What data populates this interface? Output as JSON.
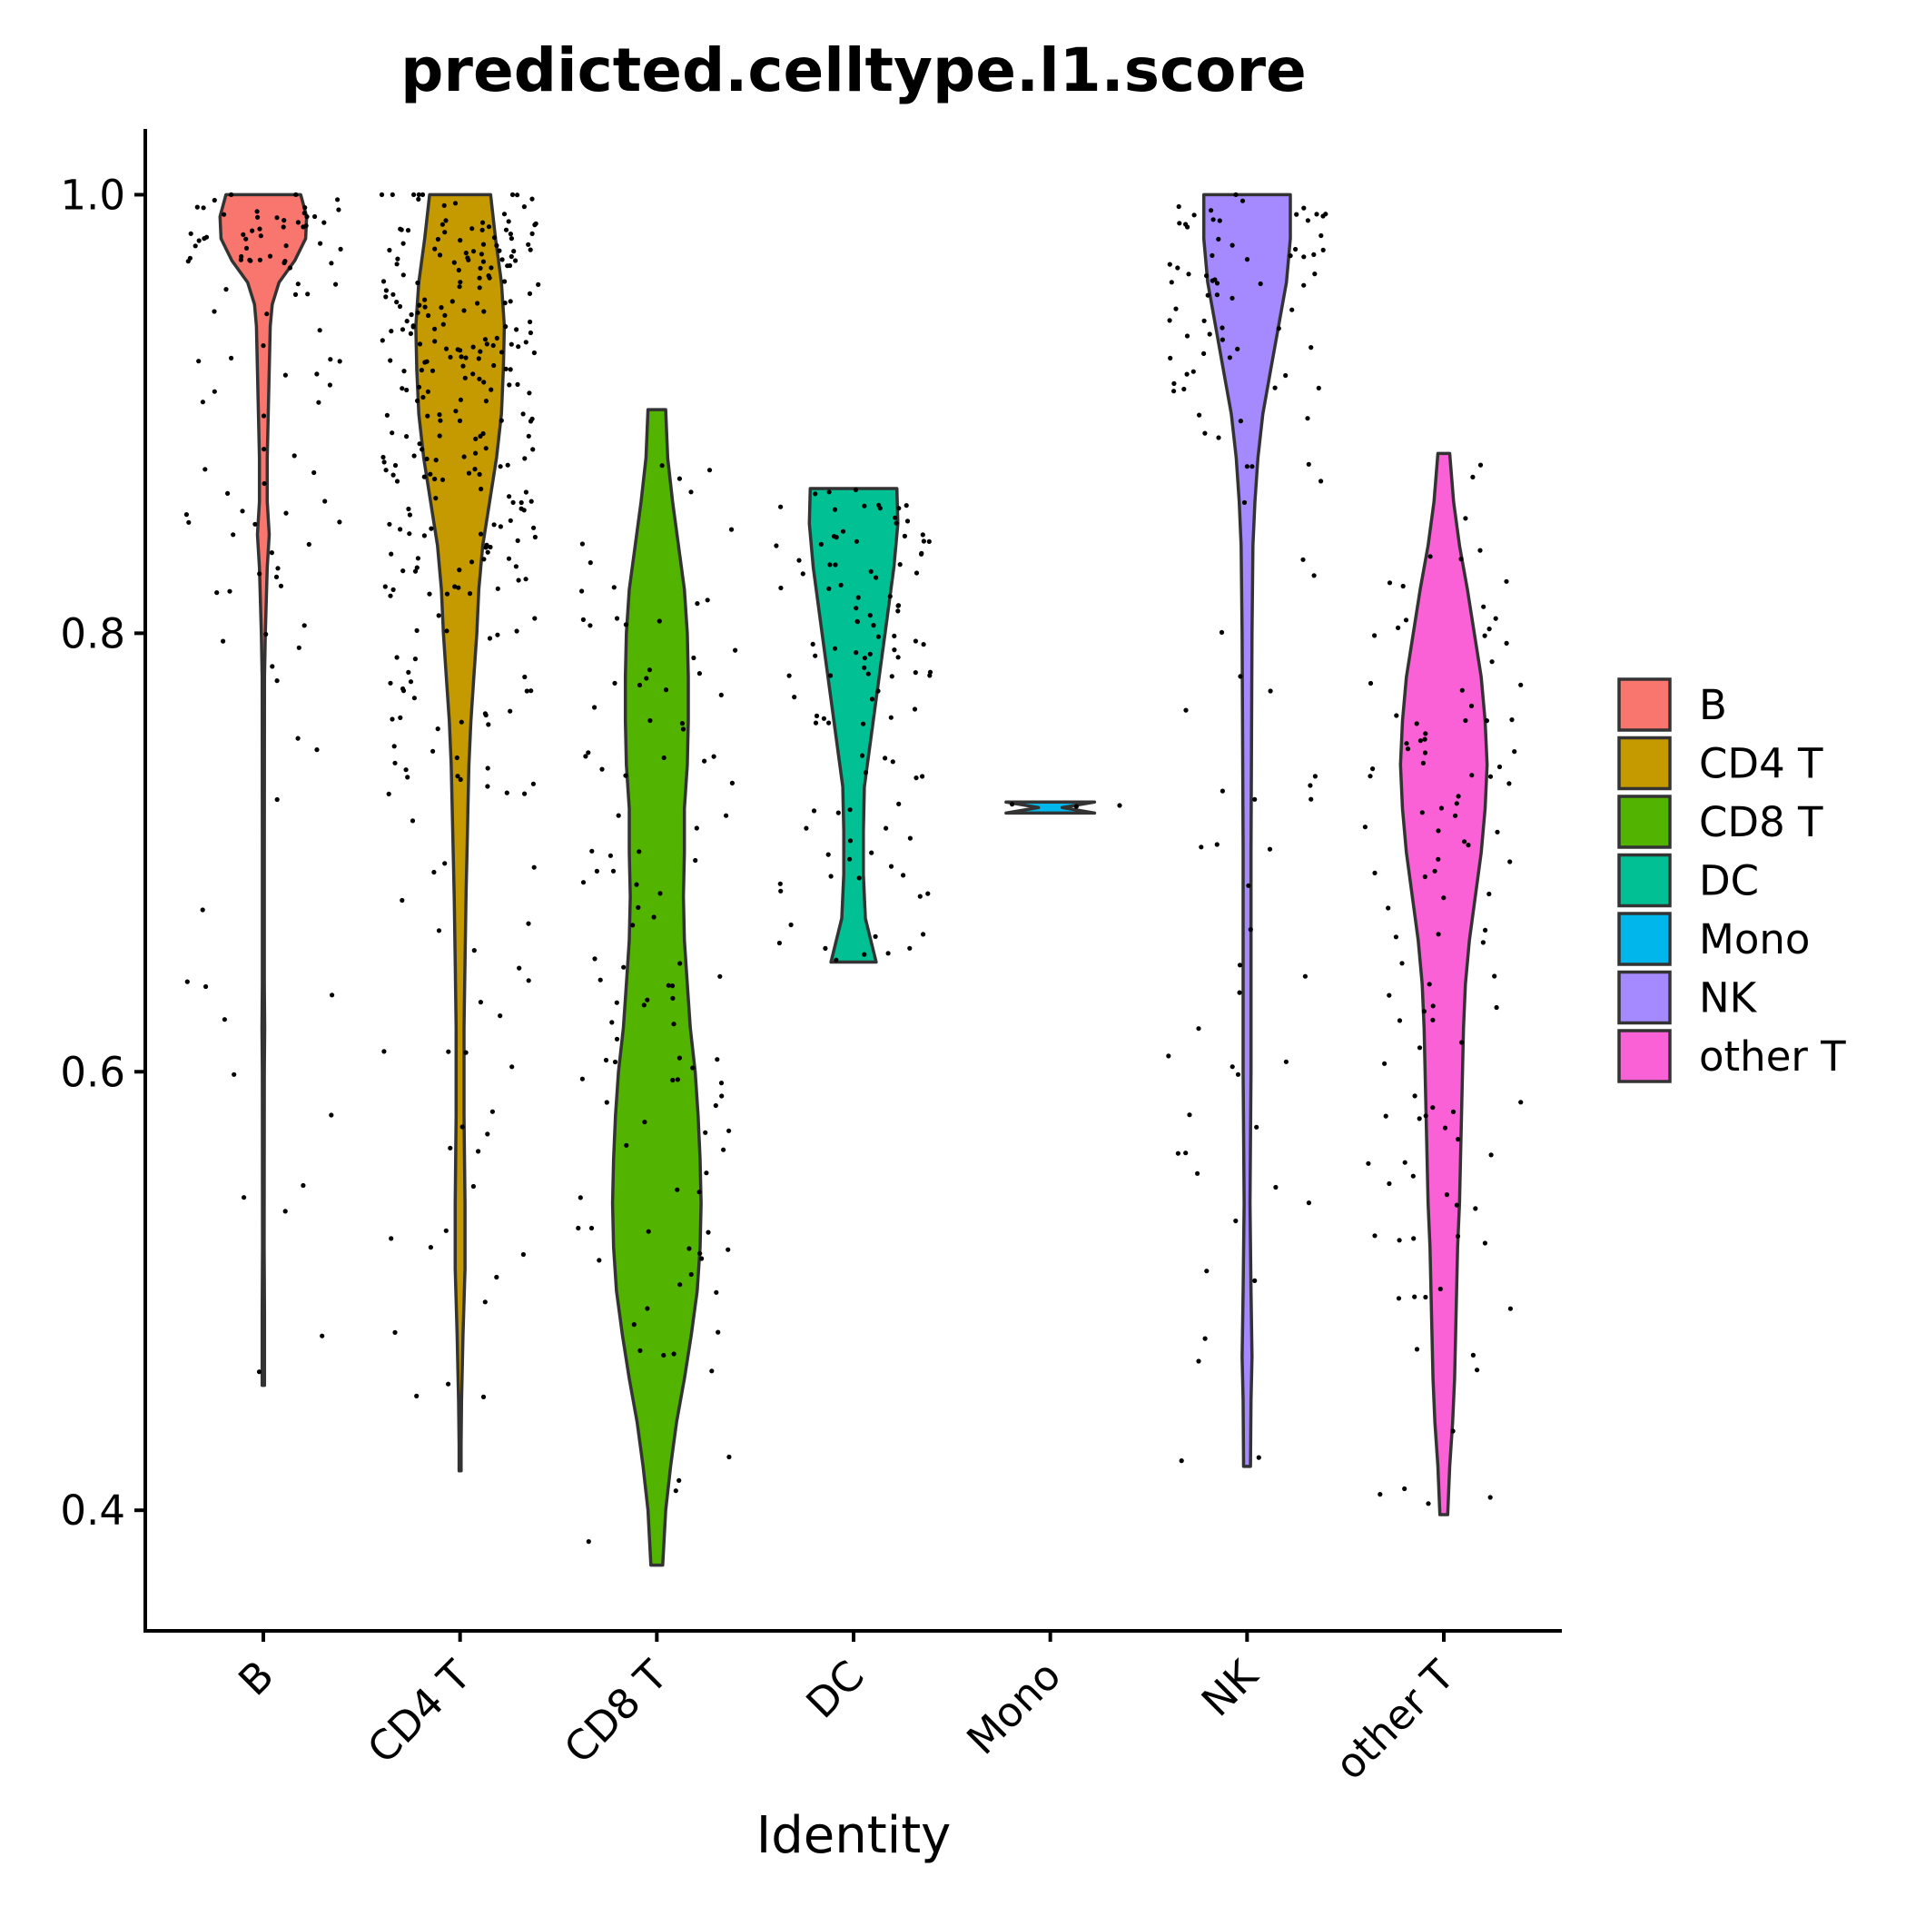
{
  "chart_data": {
    "type": "violin",
    "title": "predicted.celltype.l1.score",
    "xlabel": "Identity",
    "ylabel": "",
    "ylim": [
      0.345,
      1.03
    ],
    "yticks": [
      "0.4",
      "0.6",
      "0.8",
      "1.0"
    ],
    "categories": [
      "B",
      "CD4 T",
      "CD8 T",
      "DC",
      "Mono",
      "NK",
      "other T"
    ],
    "colors": [
      "#F8766D",
      "#C49A00",
      "#53B400",
      "#00C094",
      "#00B6EB",
      "#A58AFF",
      "#FB61D7"
    ],
    "legend": {
      "position": "right",
      "entries": [
        "B",
        "CD4 T",
        "CD8 T",
        "DC",
        "Mono",
        "NK",
        "other T"
      ]
    },
    "series": [
      {
        "name": "B",
        "range": [
          0.457,
          1.0
        ],
        "density": [
          [
            1.0,
            0.38
          ],
          [
            0.99,
            0.44
          ],
          [
            0.98,
            0.43
          ],
          [
            0.97,
            0.32
          ],
          [
            0.96,
            0.16
          ],
          [
            0.95,
            0.09
          ],
          [
            0.94,
            0.07
          ],
          [
            0.92,
            0.06
          ],
          [
            0.9,
            0.05
          ],
          [
            0.88,
            0.04
          ],
          [
            0.86,
            0.04
          ],
          [
            0.845,
            0.06
          ],
          [
            0.83,
            0.04
          ],
          [
            0.8,
            0.02
          ],
          [
            0.78,
            0.012
          ],
          [
            0.7,
            0.01
          ],
          [
            0.64,
            0.01
          ],
          [
            0.62,
            0.014
          ],
          [
            0.6,
            0.01
          ],
          [
            0.52,
            0.008
          ],
          [
            0.49,
            0.012
          ],
          [
            0.457,
            0.012
          ]
        ]
      },
      {
        "name": "CD4 T",
        "range": [
          0.418,
          1.0
        ],
        "density": [
          [
            1.0,
            0.31
          ],
          [
            0.98,
            0.36
          ],
          [
            0.96,
            0.42
          ],
          [
            0.94,
            0.45
          ],
          [
            0.92,
            0.44
          ],
          [
            0.9,
            0.42
          ],
          [
            0.88,
            0.37
          ],
          [
            0.86,
            0.3
          ],
          [
            0.84,
            0.23
          ],
          [
            0.82,
            0.19
          ],
          [
            0.8,
            0.17
          ],
          [
            0.78,
            0.14
          ],
          [
            0.76,
            0.11
          ],
          [
            0.74,
            0.09
          ],
          [
            0.72,
            0.08
          ],
          [
            0.7,
            0.07
          ],
          [
            0.68,
            0.06
          ],
          [
            0.65,
            0.05
          ],
          [
            0.62,
            0.04
          ],
          [
            0.58,
            0.04
          ],
          [
            0.54,
            0.05
          ],
          [
            0.51,
            0.05
          ],
          [
            0.48,
            0.03
          ],
          [
            0.45,
            0.015
          ],
          [
            0.43,
            0.01
          ],
          [
            0.418,
            0.01
          ]
        ]
      },
      {
        "name": "CD8 T",
        "range": [
          0.375,
          0.902
        ],
        "density": [
          [
            0.902,
            0.09
          ],
          [
            0.88,
            0.11
          ],
          [
            0.86,
            0.16
          ],
          [
            0.84,
            0.22
          ],
          [
            0.82,
            0.28
          ],
          [
            0.8,
            0.31
          ],
          [
            0.78,
            0.32
          ],
          [
            0.76,
            0.32
          ],
          [
            0.74,
            0.31
          ],
          [
            0.72,
            0.28
          ],
          [
            0.7,
            0.28
          ],
          [
            0.68,
            0.27
          ],
          [
            0.66,
            0.28
          ],
          [
            0.64,
            0.31
          ],
          [
            0.62,
            0.34
          ],
          [
            0.6,
            0.39
          ],
          [
            0.58,
            0.42
          ],
          [
            0.56,
            0.44
          ],
          [
            0.54,
            0.45
          ],
          [
            0.52,
            0.44
          ],
          [
            0.5,
            0.41
          ],
          [
            0.48,
            0.35
          ],
          [
            0.46,
            0.28
          ],
          [
            0.44,
            0.2
          ],
          [
            0.42,
            0.14
          ],
          [
            0.4,
            0.09
          ],
          [
            0.375,
            0.06
          ]
        ]
      },
      {
        "name": "DC",
        "range": [
          0.65,
          0.866
        ],
        "density": [
          [
            0.866,
            0.44
          ],
          [
            0.85,
            0.45
          ],
          [
            0.83,
            0.41
          ],
          [
            0.8,
            0.32
          ],
          [
            0.77,
            0.23
          ],
          [
            0.75,
            0.17
          ],
          [
            0.73,
            0.11
          ],
          [
            0.71,
            0.1
          ],
          [
            0.69,
            0.1
          ],
          [
            0.67,
            0.12
          ],
          [
            0.65,
            0.23
          ]
        ]
      },
      {
        "name": "Mono",
        "range": [
          0.718,
          0.723
        ],
        "density": [
          [
            0.723,
            0.45
          ],
          [
            0.7205,
            0.12
          ],
          [
            0.718,
            0.45
          ]
        ]
      },
      {
        "name": "NK",
        "range": [
          0.42,
          1.0
        ],
        "density": [
          [
            1.0,
            0.44
          ],
          [
            0.98,
            0.44
          ],
          [
            0.96,
            0.4
          ],
          [
            0.94,
            0.32
          ],
          [
            0.92,
            0.24
          ],
          [
            0.9,
            0.16
          ],
          [
            0.88,
            0.11
          ],
          [
            0.86,
            0.08
          ],
          [
            0.84,
            0.06
          ],
          [
            0.8,
            0.05
          ],
          [
            0.7,
            0.04
          ],
          [
            0.6,
            0.04
          ],
          [
            0.54,
            0.03
          ],
          [
            0.5,
            0.04
          ],
          [
            0.47,
            0.05
          ],
          [
            0.45,
            0.04
          ],
          [
            0.42,
            0.035
          ]
        ]
      },
      {
        "name": "other T",
        "range": [
          0.398,
          0.882
        ],
        "density": [
          [
            0.882,
            0.06
          ],
          [
            0.86,
            0.1
          ],
          [
            0.84,
            0.16
          ],
          [
            0.82,
            0.24
          ],
          [
            0.8,
            0.31
          ],
          [
            0.78,
            0.38
          ],
          [
            0.76,
            0.42
          ],
          [
            0.74,
            0.44
          ],
          [
            0.72,
            0.42
          ],
          [
            0.7,
            0.38
          ],
          [
            0.68,
            0.32
          ],
          [
            0.66,
            0.26
          ],
          [
            0.64,
            0.22
          ],
          [
            0.62,
            0.2
          ],
          [
            0.6,
            0.19
          ],
          [
            0.58,
            0.18
          ],
          [
            0.56,
            0.17
          ],
          [
            0.54,
            0.16
          ],
          [
            0.52,
            0.14
          ],
          [
            0.5,
            0.13
          ],
          [
            0.48,
            0.12
          ],
          [
            0.46,
            0.11
          ],
          [
            0.44,
            0.09
          ],
          [
            0.42,
            0.06
          ],
          [
            0.398,
            0.04
          ]
        ]
      }
    ]
  }
}
